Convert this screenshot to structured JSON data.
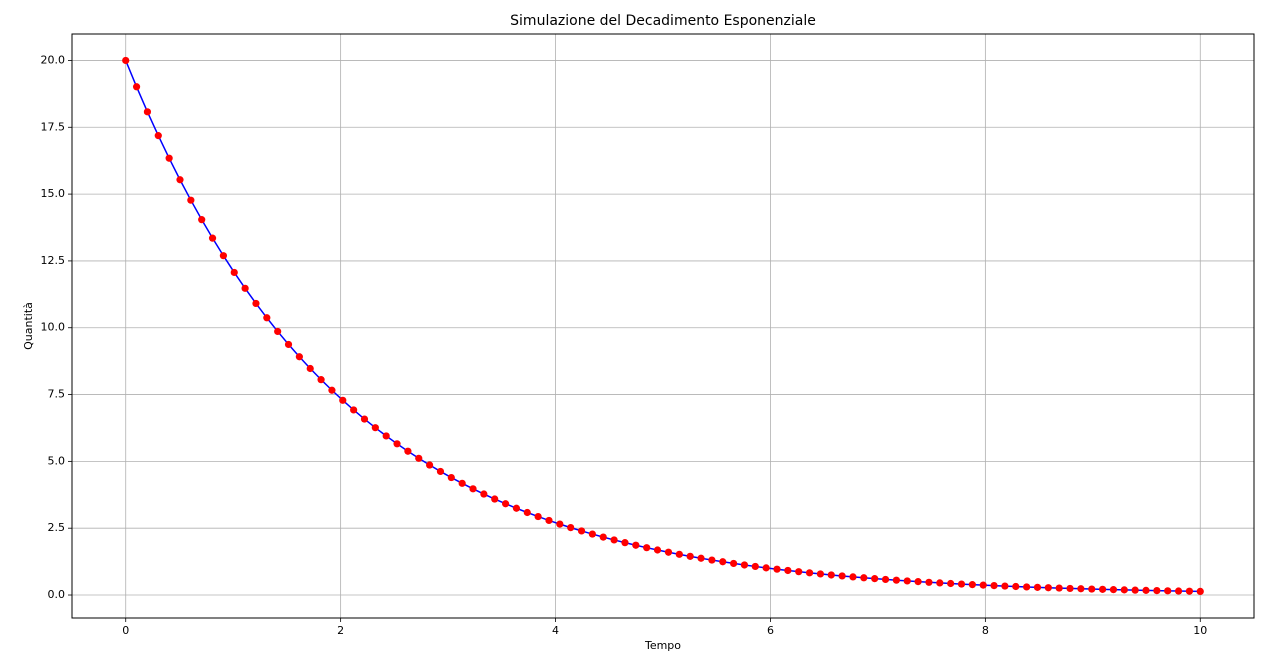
{
  "chart_data": {
    "type": "line",
    "title": "Simulazione del Decadimento Esponenziale",
    "x_label": "Tempo",
    "y_label": "Quantità",
    "x": [
      0,
      0.101,
      0.202,
      0.303,
      0.404,
      0.505,
      0.606,
      0.707,
      0.808,
      0.909,
      1.01,
      1.111,
      1.212,
      1.313,
      1.414,
      1.515,
      1.616,
      1.717,
      1.818,
      1.919,
      2.02,
      2.121,
      2.222,
      2.323,
      2.424,
      2.525,
      2.626,
      2.727,
      2.828,
      2.929,
      3.03,
      3.131,
      3.232,
      3.333,
      3.434,
      3.535,
      3.636,
      3.737,
      3.838,
      3.939,
      4.04,
      4.141,
      4.242,
      4.343,
      4.444,
      4.545,
      4.646,
      4.747,
      4.848,
      4.949,
      5.051,
      5.152,
      5.253,
      5.354,
      5.455,
      5.556,
      5.657,
      5.758,
      5.859,
      5.96,
      6.061,
      6.162,
      6.263,
      6.364,
      6.465,
      6.566,
      6.667,
      6.768,
      6.869,
      6.97,
      7.071,
      7.172,
      7.273,
      7.374,
      7.475,
      7.576,
      7.677,
      7.778,
      7.879,
      7.98,
      8.081,
      8.182,
      8.283,
      8.384,
      8.485,
      8.586,
      8.687,
      8.788,
      8.889,
      8.99,
      9.091,
      9.192,
      9.293,
      9.394,
      9.495,
      9.596,
      9.697,
      9.798,
      9.899,
      10
    ],
    "series": [
      {
        "color": "#0000ff",
        "marker_color": "#ff0000",
        "values": [
          20,
          19.015,
          18.078,
          17.188,
          16.342,
          15.537,
          14.772,
          14.044,
          13.352,
          12.695,
          12.069,
          11.475,
          10.91,
          10.373,
          9.862,
          9.376,
          8.914,
          8.475,
          8.058,
          7.661,
          7.284,
          6.925,
          6.584,
          6.26,
          5.951,
          5.658,
          5.38,
          5.115,
          4.863,
          4.623,
          4.395,
          4.179,
          3.973,
          3.778,
          3.591,
          3.415,
          3.246,
          3.087,
          2.935,
          2.79,
          2.653,
          2.522,
          2.398,
          2.28,
          2.167,
          2.061,
          1.959,
          1.863,
          1.771,
          1.684,
          1.601,
          1.522,
          1.447,
          1.376,
          1.308,
          1.244,
          1.182,
          1.124,
          1.069,
          1.016,
          0.966,
          0.918,
          0.873,
          0.83,
          0.789,
          0.75,
          0.713,
          0.678,
          0.645,
          0.613,
          0.583,
          0.554,
          0.527,
          0.501,
          0.476,
          0.453,
          0.431,
          0.409,
          0.389,
          0.37,
          0.352,
          0.334,
          0.318,
          0.302,
          0.287,
          0.273,
          0.26,
          0.247,
          0.235,
          0.223,
          0.212,
          0.202,
          0.192,
          0.182,
          0.173,
          0.165,
          0.157,
          0.149,
          0.142,
          0.135
        ]
      }
    ],
    "xlim": [
      -0.5,
      10.5
    ],
    "xticks": [
      0,
      2,
      4,
      6,
      8,
      10
    ],
    "ylim": [
      -0.86,
      20.99
    ],
    "yticks": [
      {
        "value": 0,
        "label": "0.0"
      },
      2.5,
      {
        "value": 5,
        "label": "5.0"
      },
      7.5,
      {
        "value": 10,
        "label": "10.0"
      },
      12.5,
      {
        "value": 15,
        "label": "15.0"
      },
      17.5,
      {
        "value": 20,
        "label": "20.0"
      }
    ],
    "grid": true
  }
}
